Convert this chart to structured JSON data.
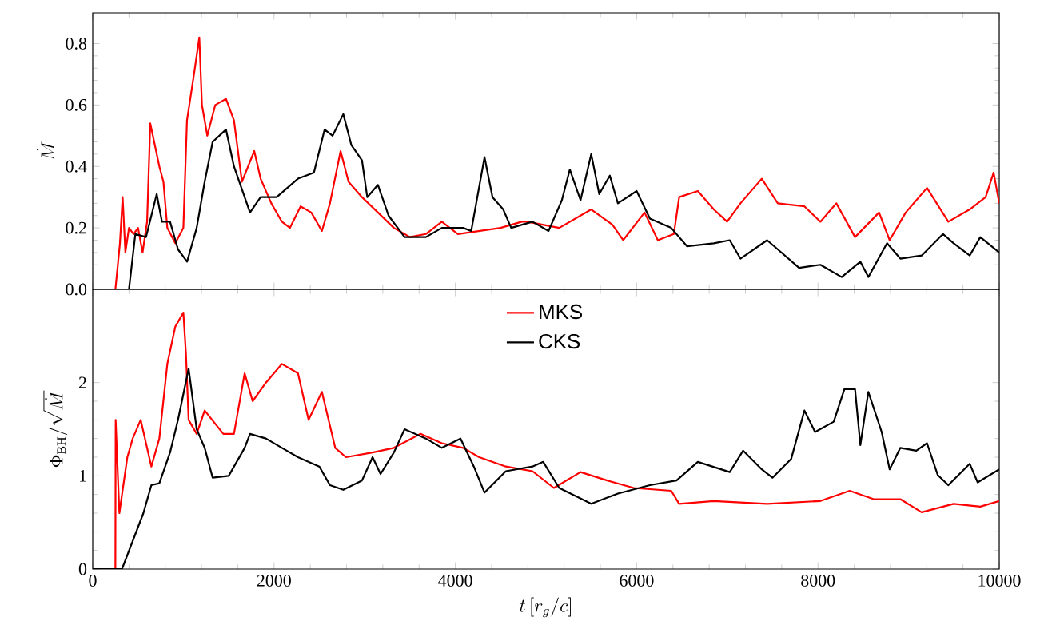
{
  "chart_data": [
    {
      "type": "line",
      "ylabel": "\\dot{M}",
      "xlim": [
        0,
        10000
      ],
      "ylim": [
        0,
        0.9
      ],
      "xticks": [
        0,
        2000,
        4000,
        6000,
        8000,
        10000
      ],
      "yticks": [
        {
          "value": 0,
          "label": "0.0"
        },
        {
          "value": 0.2,
          "label": "0.2"
        },
        {
          "value": 0.4,
          "label": "0.4"
        },
        {
          "value": 0.6,
          "label": "0.6"
        },
        {
          "value": 0.8,
          "label": "0.8"
        }
      ],
      "tick_labels": "y",
      "grid": false,
      "legend": false,
      "marker": "none",
      "line_style": "solid",
      "series": [
        {
          "color": "#ff0000",
          "x": [
            0,
            250,
            300,
            330,
            360,
            400,
            450,
            500,
            550,
            600,
            635,
            735,
            780,
            823,
            911,
            1000,
            1040,
            1117,
            1176,
            1205,
            1264,
            1352,
            1470,
            1558,
            1646,
            1782,
            1852,
            1970,
            2087,
            2176,
            2293,
            2411,
            2528,
            2617,
            2734,
            2822,
            2970,
            3146,
            3322,
            3499,
            3675,
            3851,
            4028,
            4263,
            4498,
            4733,
            4793,
            5146,
            5499,
            5734,
            5851,
            6087,
            6234,
            6410,
            6469,
            6675,
            6851,
            6998,
            7145,
            7380,
            7557,
            7851,
            8027,
            8203,
            8409,
            8674,
            8791,
            8968,
            9203,
            9438,
            9674,
            9850,
            9938,
            10000
          ],
          "values": [
            0,
            0,
            0.15,
            0.3,
            0.12,
            0.2,
            0.18,
            0.2,
            0.12,
            0.22,
            0.54,
            0.4,
            0.35,
            0.2,
            0.15,
            0.2,
            0.55,
            0.7,
            0.82,
            0.6,
            0.5,
            0.6,
            0.62,
            0.55,
            0.35,
            0.45,
            0.36,
            0.28,
            0.22,
            0.2,
            0.27,
            0.25,
            0.19,
            0.28,
            0.45,
            0.35,
            0.3,
            0.25,
            0.2,
            0.17,
            0.18,
            0.22,
            0.18,
            0.19,
            0.2,
            0.22,
            0.22,
            0.2,
            0.26,
            0.21,
            0.16,
            0.25,
            0.16,
            0.18,
            0.3,
            0.32,
            0.26,
            0.22,
            0.28,
            0.36,
            0.28,
            0.27,
            0.22,
            0.28,
            0.17,
            0.25,
            0.16,
            0.25,
            0.33,
            0.22,
            0.26,
            0.3,
            0.38,
            0.28
          ]
        },
        {
          "color": "#000000",
          "x": [
            0,
            350,
            400,
            470,
            588,
            706,
            764,
            853,
            941,
            1041,
            1147,
            1235,
            1323,
            1470,
            1558,
            1676,
            1735,
            1852,
            2029,
            2146,
            2264,
            2440,
            2558,
            2646,
            2764,
            2852,
            2970,
            3028,
            3146,
            3263,
            3440,
            3675,
            3851,
            4086,
            4175,
            4322,
            4410,
            4528,
            4616,
            4851,
            5028,
            5175,
            5263,
            5381,
            5499,
            5587,
            5704,
            5793,
            6000,
            6146,
            6381,
            6557,
            6851,
            7027,
            7145,
            7439,
            7557,
            7792,
            8027,
            8262,
            8468,
            8556,
            8762,
            8909,
            9144,
            9380,
            9497,
            9674,
            9791,
            10000
          ],
          "values": [
            0,
            0,
            0,
            0.18,
            0.17,
            0.31,
            0.22,
            0.22,
            0.13,
            0.09,
            0.2,
            0.35,
            0.48,
            0.52,
            0.4,
            0.3,
            0.25,
            0.3,
            0.3,
            0.33,
            0.36,
            0.38,
            0.52,
            0.5,
            0.57,
            0.47,
            0.42,
            0.3,
            0.34,
            0.24,
            0.17,
            0.17,
            0.2,
            0.2,
            0.19,
            0.43,
            0.3,
            0.26,
            0.2,
            0.22,
            0.19,
            0.29,
            0.39,
            0.29,
            0.44,
            0.31,
            0.37,
            0.28,
            0.32,
            0.23,
            0.2,
            0.14,
            0.15,
            0.16,
            0.1,
            0.16,
            0.13,
            0.07,
            0.08,
            0.04,
            0.09,
            0.04,
            0.15,
            0.1,
            0.11,
            0.18,
            0.15,
            0.11,
            0.17,
            0.12
          ]
        }
      ]
    },
    {
      "type": "line",
      "xlabel": "t\\,[r_g/c]",
      "ylabel": "\\Phi_{\\rm BH}/\\sqrt{\\dot{M}}",
      "xlim": [
        0,
        10000
      ],
      "ylim": [
        0,
        3
      ],
      "xticks": [
        0,
        2000,
        4000,
        6000,
        8000,
        10000
      ],
      "yticks": [
        0,
        1,
        2
      ],
      "grid": false,
      "legend": "top",
      "marker": "none",
      "line_style": "solid",
      "series": [
        {
          "name": "MKS",
          "color": "#ff0000",
          "x": [
            0,
            250,
            253,
            294,
            382,
            441,
            529,
            588,
            647,
            735,
            823,
            911,
            1000,
            1029,
            1058,
            1147,
            1235,
            1441,
            1558,
            1676,
            1764,
            1911,
            2087,
            2264,
            2381,
            2528,
            2675,
            2793,
            3087,
            3322,
            3616,
            3851,
            4086,
            4263,
            4557,
            4851,
            5087,
            5381,
            5675,
            5969,
            6381,
            6469,
            6851,
            7439,
            8027,
            8350,
            8615,
            8909,
            9144,
            9497,
            9791,
            10000
          ],
          "values": [
            0,
            0,
            1.6,
            0.6,
            1.2,
            1.4,
            1.6,
            1.35,
            1.1,
            1.4,
            2.2,
            2.6,
            2.75,
            2.3,
            1.6,
            1.45,
            1.7,
            1.45,
            1.45,
            2.1,
            1.8,
            2.0,
            2.2,
            2.1,
            1.6,
            1.9,
            1.3,
            1.2,
            1.25,
            1.3,
            1.45,
            1.35,
            1.3,
            1.2,
            1.1,
            1.05,
            0.87,
            1.04,
            0.95,
            0.87,
            0.84,
            0.7,
            0.73,
            0.7,
            0.73,
            0.84,
            0.75,
            0.75,
            0.61,
            0.7,
            0.67,
            0.73
          ]
        },
        {
          "name": "CKS",
          "color": "#000000",
          "x": [
            0,
            323,
            441,
            559,
            647,
            735,
            853,
            941,
            1058,
            1147,
            1235,
            1323,
            1500,
            1676,
            1735,
            1911,
            2087,
            2264,
            2499,
            2617,
            2764,
            2970,
            3087,
            3175,
            3322,
            3440,
            3675,
            3851,
            4057,
            4204,
            4322,
            4557,
            4851,
            4969,
            5146,
            5499,
            5793,
            6146,
            6440,
            6675,
            7027,
            7174,
            7380,
            7498,
            7704,
            7851,
            7968,
            8174,
            8292,
            8409,
            8468,
            8556,
            8703,
            8791,
            8909,
            9085,
            9203,
            9321,
            9438,
            9674,
            9762,
            10000
          ],
          "values": [
            0,
            0,
            0.3,
            0.6,
            0.9,
            0.92,
            1.25,
            1.6,
            2.15,
            1.5,
            1.3,
            0.98,
            1.0,
            1.3,
            1.45,
            1.4,
            1.3,
            1.2,
            1.1,
            0.9,
            0.85,
            0.95,
            1.2,
            1.02,
            1.25,
            1.5,
            1.4,
            1.3,
            1.4,
            1.1,
            0.82,
            1.05,
            1.1,
            1.15,
            0.87,
            0.7,
            0.81,
            0.9,
            0.95,
            1.15,
            1.04,
            1.27,
            1.07,
            0.98,
            1.18,
            1.7,
            1.47,
            1.58,
            1.93,
            1.93,
            1.33,
            1.9,
            1.47,
            1.07,
            1.3,
            1.27,
            1.35,
            1.01,
            0.9,
            1.13,
            0.93,
            1.07
          ]
        }
      ]
    }
  ]
}
